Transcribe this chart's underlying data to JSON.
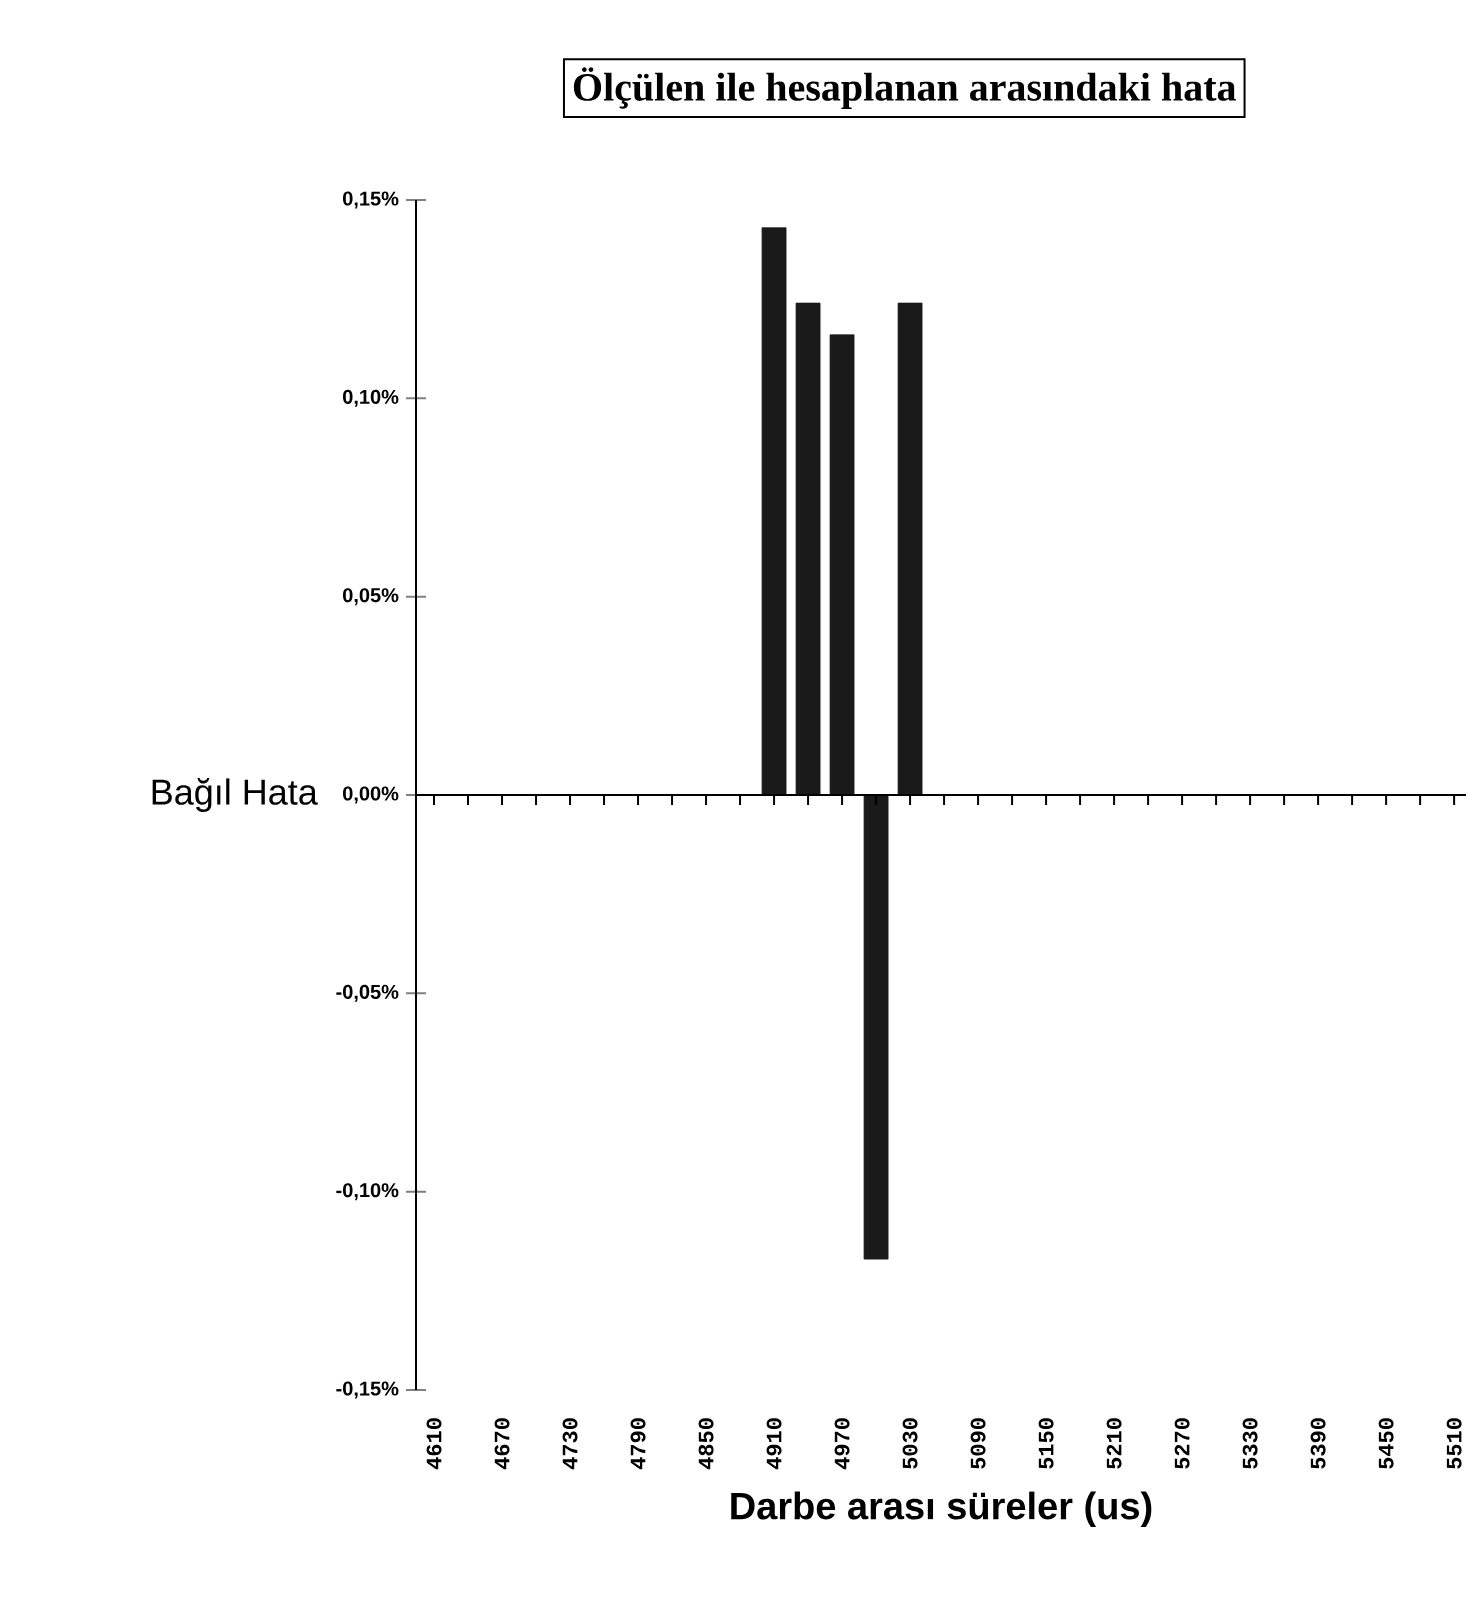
{
  "chart_data": {
    "type": "bar",
    "title": "Ölçülen ile hesaplanan arasındaki hata",
    "xlabel": "Darbe arası süreler (us)",
    "ylabel": "Bağıl Hata",
    "categories": [
      "4610",
      null,
      "4670",
      null,
      "4730",
      null,
      "4790",
      null,
      "4850",
      null,
      "4910",
      null,
      "4970",
      null,
      "5030",
      null,
      "5090",
      null,
      "5150",
      null,
      "5210",
      null,
      "5270",
      null,
      "5330",
      null,
      "5390",
      null,
      "5450",
      null,
      "5510"
    ],
    "values": [
      0,
      0,
      0,
      0,
      0,
      0,
      0,
      0,
      0,
      0,
      0.143,
      0.124,
      0.116,
      -0.117,
      0.124,
      0,
      0,
      0,
      0,
      0,
      0,
      0,
      0,
      0,
      0,
      0,
      0,
      0,
      0,
      0,
      0
    ],
    "color": "#1a1a1a",
    "ylim": [
      -0.15,
      0.15
    ],
    "yticks": [
      {
        "value": -0.15,
        "label": "-0,15%"
      },
      {
        "value": -0.1,
        "label": "-0,10%"
      },
      {
        "value": -0.05,
        "label": "-0,05%"
      },
      {
        "value": 0,
        "label": "0,00%"
      },
      {
        "value": 0.05,
        "label": "0,05%"
      },
      {
        "value": 0.1,
        "label": "0,10%"
      },
      {
        "value": 0.15,
        "label": "0,15%"
      }
    ],
    "orientation": "vertical"
  }
}
